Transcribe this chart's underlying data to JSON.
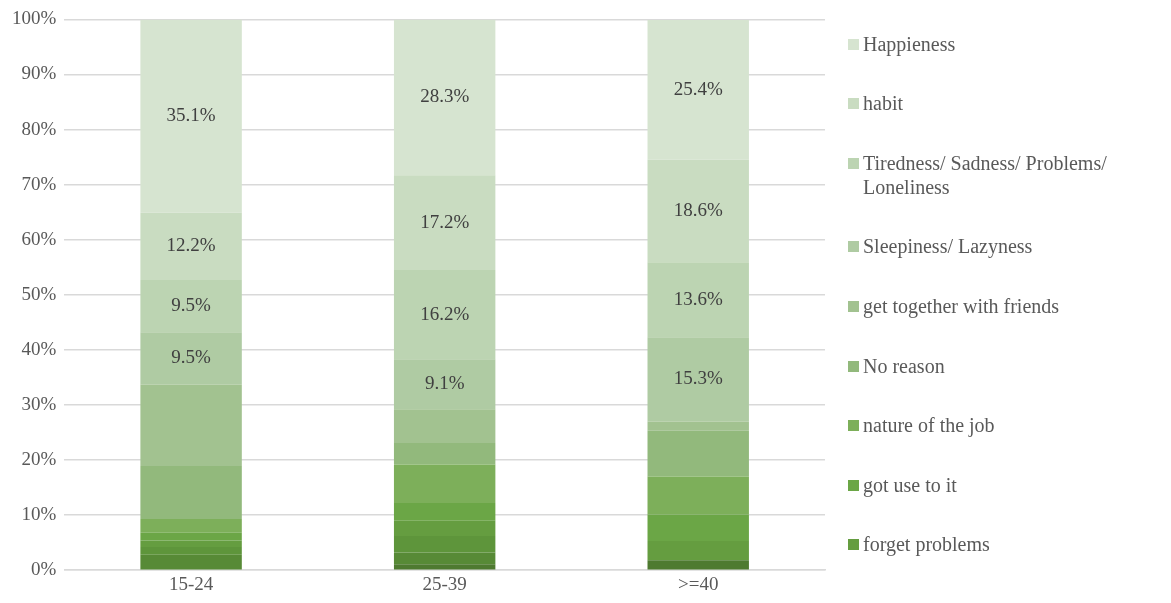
{
  "chart_data": {
    "type": "bar",
    "stacked": true,
    "categories": [
      "15-24",
      "25-39",
      ">=40"
    ],
    "series": [
      {
        "color": "#4e7a30",
        "values": [
          0,
          1.1,
          1.8
        ]
      },
      {
        "color": "#578a36",
        "values": [
          2.8,
          2.1,
          0
        ]
      },
      {
        "color": "#5e953b",
        "values": [
          1.4,
          3.0,
          0
        ]
      },
      {
        "name": "forget problems",
        "color": "#659d40",
        "values": [
          1.2,
          2.8,
          3.5
        ]
      },
      {
        "name": "got use to it",
        "color": "#6ba646",
        "values": [
          1.4,
          3.2,
          4.8
        ]
      },
      {
        "name": "nature of the job",
        "color": "#7daf5a",
        "values": [
          2.5,
          7.0,
          6.9
        ]
      },
      {
        "name": "No reason",
        "color": "#92b97c",
        "values": [
          9.6,
          3.9,
          8.3
        ]
      },
      {
        "name": "get together with friends",
        "color": "#a2c290",
        "values": [
          14.8,
          6.1,
          1.7
        ]
      },
      {
        "name": "Sleepiness/ Lazyness",
        "color": "#afcba3",
        "values": [
          9.5,
          9.1,
          15.3
        ],
        "value_labels": [
          "9.5%",
          "9.1%",
          "15.3%"
        ]
      },
      {
        "name": "Tiredness/ Sadness/ Problems/ Loneliness",
        "color": "#bcd4b2",
        "values": [
          9.5,
          16.2,
          13.6
        ],
        "value_labels": [
          "9.5%",
          "16.2%",
          "13.6%"
        ]
      },
      {
        "name": "habit",
        "color": "#c9dcc1",
        "values": [
          12.2,
          17.2,
          18.6
        ],
        "value_labels": [
          "12.2%",
          "17.2%",
          "18.6%"
        ]
      },
      {
        "name": "Happieness",
        "color": "#d6e4d0",
        "values": [
          35.1,
          28.3,
          25.4
        ],
        "value_labels": [
          "35.1%",
          "28.3%",
          "25.4%"
        ]
      }
    ],
    "ylim": [
      0,
      100
    ],
    "yticks": [
      {
        "value": 0,
        "label": "0%"
      },
      {
        "value": 10,
        "label": "10%"
      },
      {
        "value": 20,
        "label": "20%"
      },
      {
        "value": 30,
        "label": "30%"
      },
      {
        "value": 40,
        "label": "40%"
      },
      {
        "value": 50,
        "label": "50%"
      },
      {
        "value": 60,
        "label": "60%"
      },
      {
        "value": 70,
        "label": "70%"
      },
      {
        "value": 80,
        "label": "80%"
      },
      {
        "value": 90,
        "label": "90%"
      },
      {
        "value": 100,
        "label": "100%"
      }
    ],
    "grid": "y",
    "legend": "right"
  }
}
